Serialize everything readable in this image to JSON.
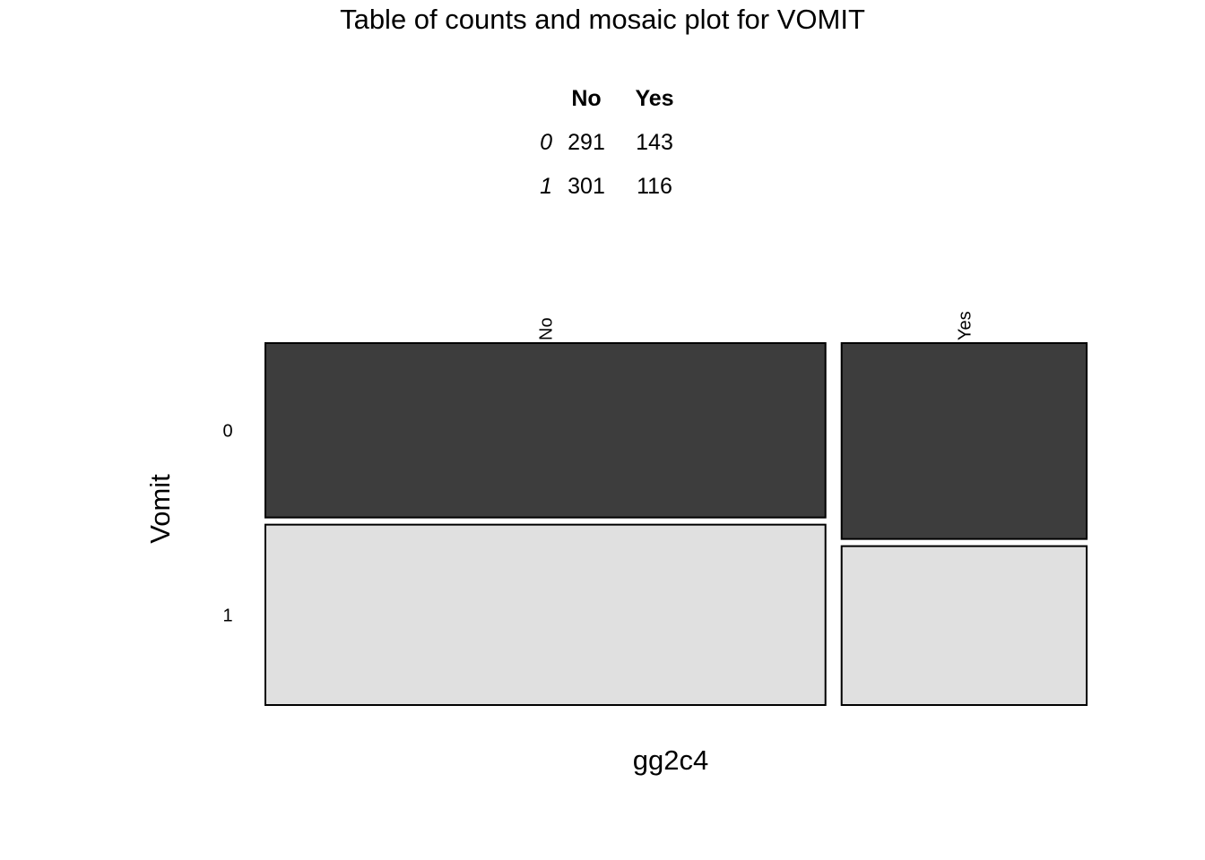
{
  "title": "Table of counts and mosaic plot for VOMIT",
  "table": {
    "columns": [
      "No",
      "Yes"
    ],
    "rows": [
      {
        "label": "0",
        "values": [
          "291",
          "143"
        ]
      },
      {
        "label": "1",
        "values": [
          "301",
          "116"
        ]
      }
    ]
  },
  "chart_data": {
    "type": "mosaic",
    "xlabel": "gg2c4",
    "ylabel": "Vomit",
    "x_categories": [
      "No",
      "Yes"
    ],
    "y_categories": [
      "0",
      "1"
    ],
    "counts": {
      "No": {
        "0": 291,
        "1": 301
      },
      "Yes": {
        "0": 143,
        "1": 116
      }
    },
    "colors": {
      "0": "#3d3d3d",
      "1": "#e0e0e0"
    },
    "border_color": "#000000"
  }
}
